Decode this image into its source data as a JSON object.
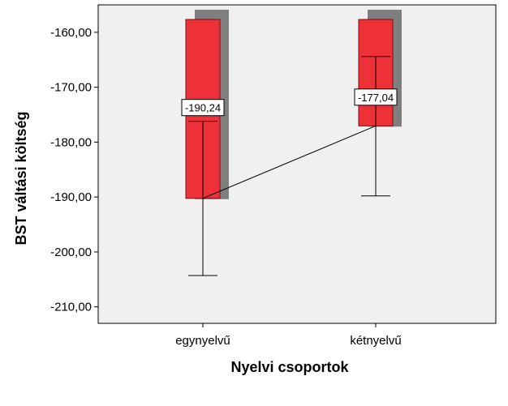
{
  "chart_data": {
    "type": "bar",
    "xlabel": "Nyelvi csoportok",
    "ylabel": "BST váltási költség",
    "ylim": [
      -213,
      -155
    ],
    "yticks": [
      -160,
      -170,
      -180,
      -190,
      -200,
      -210
    ],
    "ytick_labels": [
      "-160,00",
      "-170,00",
      "-180,00",
      "-190,00",
      "-200,00",
      "-210,00"
    ],
    "categories": [
      "egynyelvű",
      "kétnyelvű"
    ],
    "values": [
      -190.24,
      -177.04
    ],
    "value_labels": [
      "-190,24",
      "-177,04"
    ],
    "error_low": [
      -204.3,
      -189.8
    ],
    "error_high": [
      -176.2,
      -164.4
    ],
    "connect_means": true,
    "grid": false,
    "colors": {
      "bar": "#ee3139",
      "bar_stroke": "#7a1010",
      "shadow": "#7f7f7f",
      "plot_background": "#f0f0f0"
    }
  }
}
